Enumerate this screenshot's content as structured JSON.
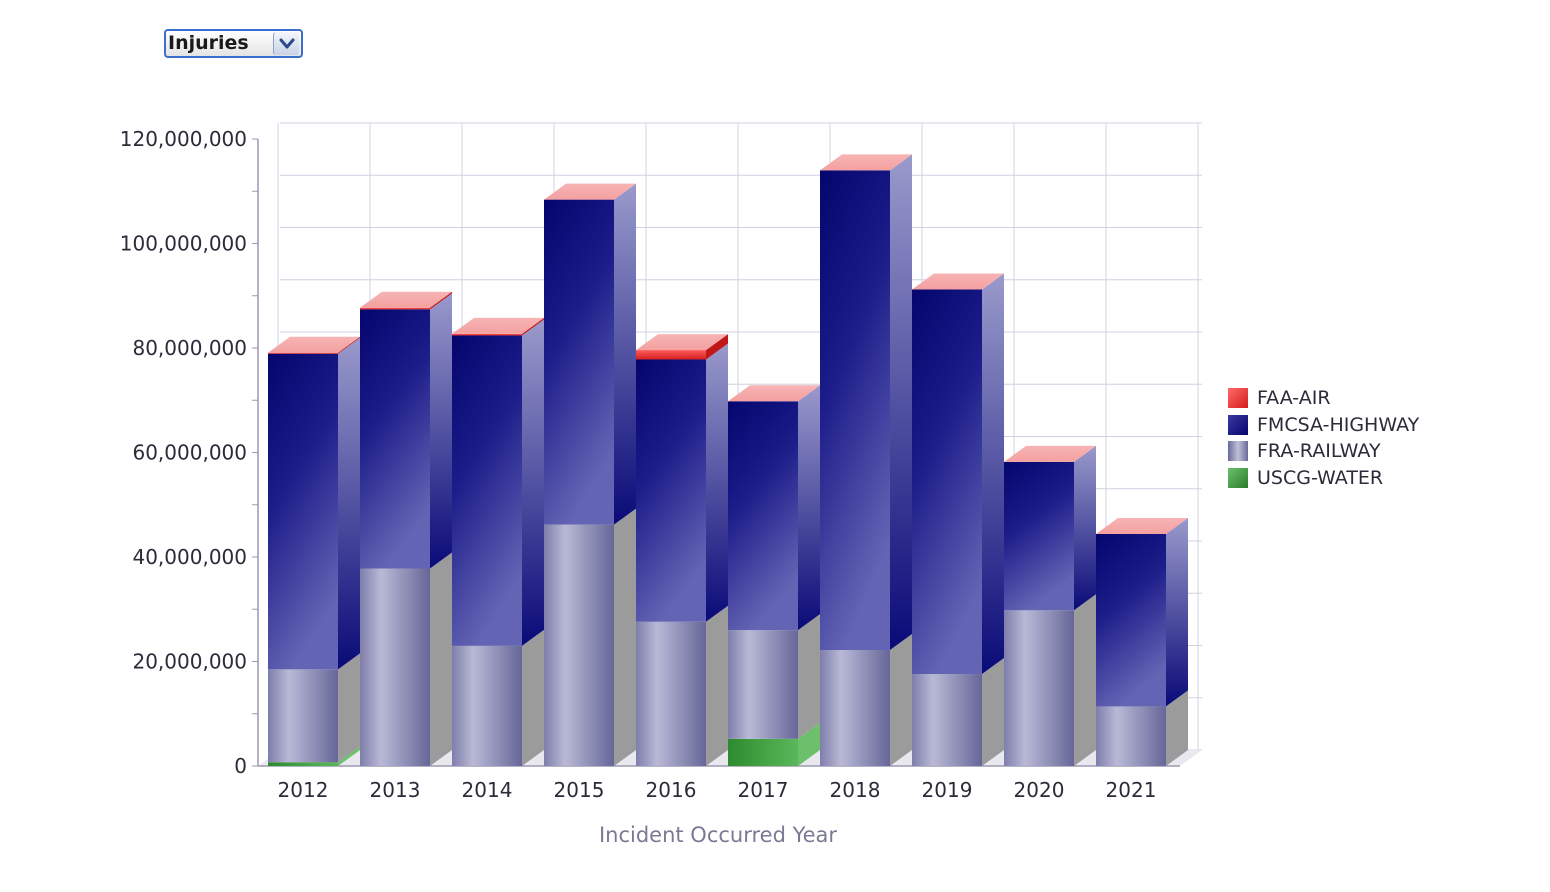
{
  "metric_select": {
    "value": "Injuries"
  },
  "chart_data": {
    "type": "bar",
    "stacked": true,
    "three_d": true,
    "xlabel": "Incident Occurred Year",
    "ylabel": "",
    "ylim": [
      0,
      120000000
    ],
    "y_ticks": [
      "0",
      "20,000,000",
      "40,000,000",
      "60,000,000",
      "80,000,000",
      "100,000,000",
      "120,000,000"
    ],
    "grid": true,
    "legend_position": "right",
    "categories": [
      "2012",
      "2013",
      "2014",
      "2015",
      "2016",
      "2017",
      "2018",
      "2019",
      "2020",
      "2021"
    ],
    "series": [
      {
        "name": "USCG-WATER",
        "color": "#3a9a3a",
        "values": [
          700000,
          0,
          0,
          0,
          0,
          5200000,
          0,
          0,
          0,
          0
        ]
      },
      {
        "name": "FRA-RAILWAY",
        "color": "#8a8ab8",
        "values": [
          17800000,
          37800000,
          23000000,
          46200000,
          27600000,
          20800000,
          22200000,
          17600000,
          29800000,
          11400000
        ]
      },
      {
        "name": "FMCSA-HIGHWAY",
        "color": "#12127a",
        "values": [
          60400000,
          49600000,
          59400000,
          62200000,
          50200000,
          43800000,
          91800000,
          73600000,
          28400000,
          33000000
        ]
      },
      {
        "name": "FAA-AIR",
        "color": "#e83a3a",
        "values": [
          200000,
          300000,
          300000,
          0,
          1800000,
          0,
          0,
          0,
          0,
          0
        ]
      }
    ]
  }
}
